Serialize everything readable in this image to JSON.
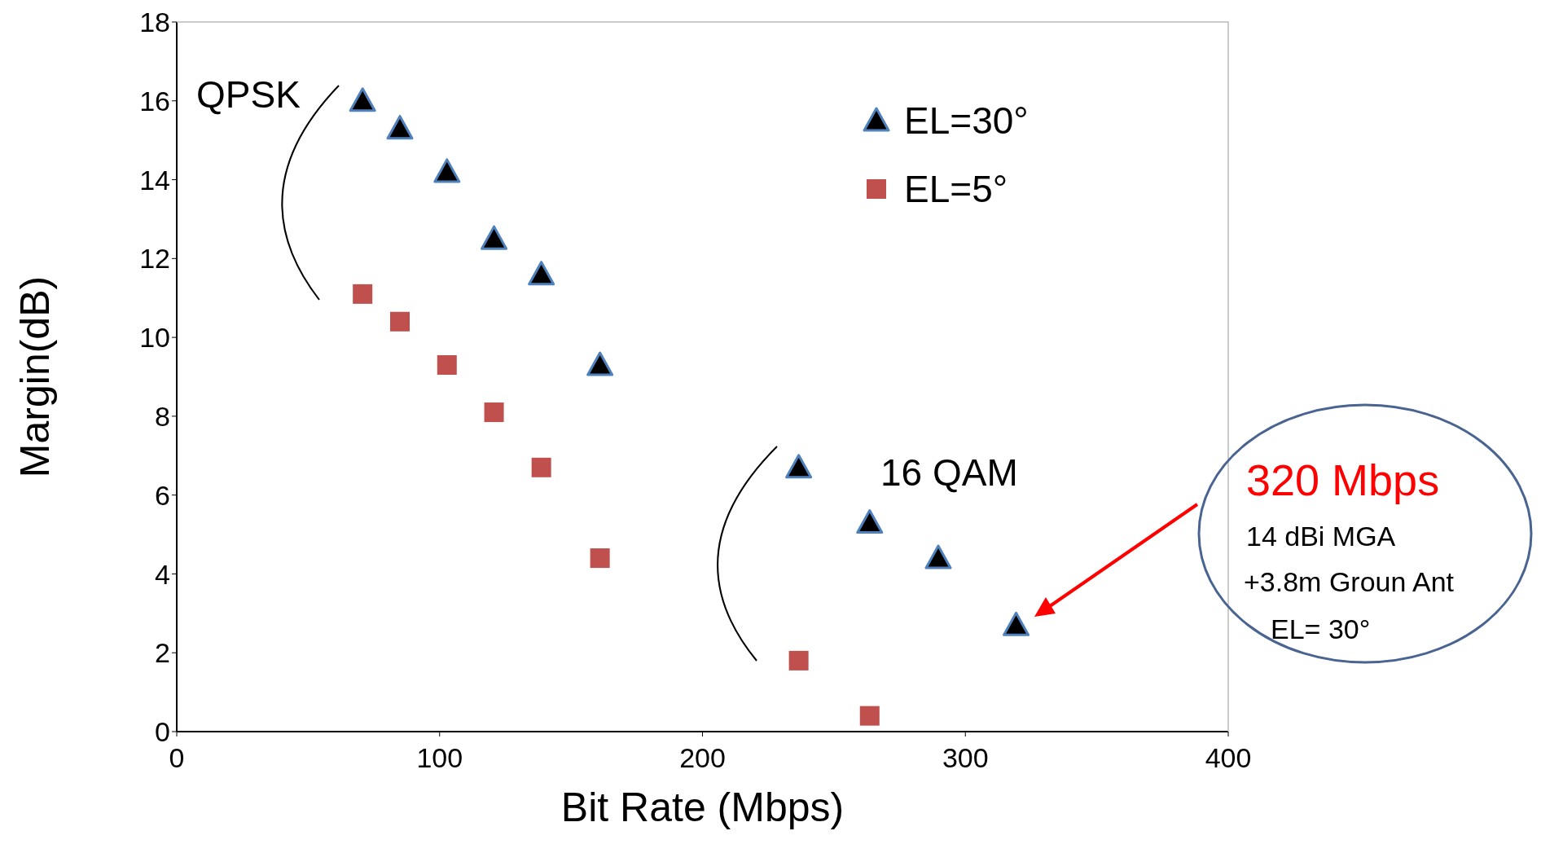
{
  "chart_data": {
    "type": "scatter",
    "xlabel": "Bit Rate (Mbps)",
    "ylabel": "Margin(dB)",
    "xlim": [
      0,
      400
    ],
    "xticks": [
      0,
      100,
      200,
      300,
      400
    ],
    "ylim": [
      0,
      18
    ],
    "yticks": [
      0,
      2,
      4,
      6,
      8,
      10,
      12,
      14,
      16,
      18
    ],
    "grid": false,
    "legend": "top right",
    "series": [
      {
        "name": "EL=30°",
        "color": "#000000",
        "marker": "triangle",
        "x": [
          70.7,
          84.9,
          102.8,
          120.7,
          138.7,
          161,
          236.6,
          263.6,
          289.7,
          319.3
        ],
        "values": [
          16.0,
          15.3,
          14.2,
          12.5,
          11.6,
          9.3,
          6.7,
          5.3,
          4.4,
          2.7
        ]
      },
      {
        "name": "EL=5°",
        "color": "#c0504d",
        "marker": "square",
        "x": [
          70.7,
          84.9,
          102.8,
          120.7,
          138.7,
          161,
          236.6,
          263.6
        ],
        "values": [
          11.1,
          10.4,
          9.3,
          8.1,
          6.7,
          4.4,
          1.8,
          0.4
        ]
      }
    ],
    "annotations": [
      "QPSK",
      "16 QAM",
      "320 Mbps",
      "14 dBi MGA",
      "+3.8m Groun Ant",
      "EL= 30°"
    ]
  }
}
